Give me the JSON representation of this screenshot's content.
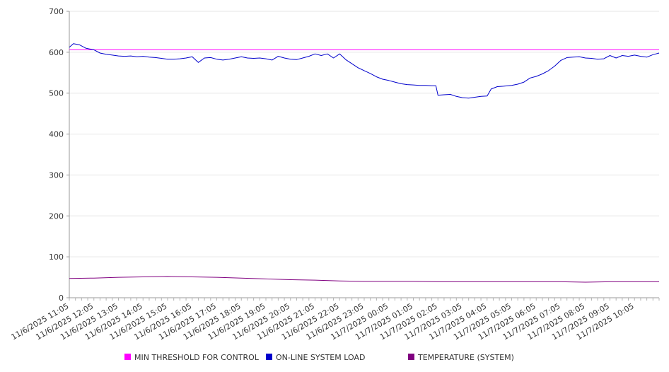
{
  "chart_data": {
    "type": "line",
    "title": "",
    "xlabel": "",
    "ylabel": "",
    "ylim": [
      0,
      700
    ],
    "yticks": [
      0,
      100,
      200,
      300,
      400,
      500,
      600,
      700
    ],
    "grid": true,
    "legend_position": "bottom",
    "x_tick_labels": [
      "11/6/2025 11:05",
      "11/6/2025 12:05",
      "11/6/2025 13:05",
      "11/6/2025 14:05",
      "11/6/2025 15:05",
      "11/6/2025 16:05",
      "11/6/2025 17:05",
      "11/6/2025 18:05",
      "11/6/2025 19:05",
      "11/6/2025 20:05",
      "11/6/2025 21:05",
      "11/6/2025 22:05",
      "11/6/2025 23:05",
      "11/7/2025 00:05",
      "11/7/2025 01:05",
      "11/7/2025 02:05",
      "11/7/2025 03:05",
      "11/7/2025 04:05",
      "11/7/2025 05:05",
      "11/7/2025 06:05",
      "11/7/2025 07:05",
      "11/7/2025 08:05",
      "11/7/2025 09:05",
      "11/7/2025 10:05"
    ],
    "x_domain": [
      "11/6/2025 11:05",
      "11/7/2025 11:05"
    ],
    "series": [
      {
        "name": "MIN THRESHOLD FOR CONTROL",
        "color": "#ff00ff",
        "points": [
          [
            "11/6/2025 11:05",
            606
          ],
          [
            "11/7/2025 11:05",
            606
          ]
        ]
      },
      {
        "name": "ON-LINE SYSTEM LOAD",
        "color": "#0000cc",
        "points": [
          [
            "11/6/2025 11:05",
            612
          ],
          [
            "11/6/2025 11:15",
            621
          ],
          [
            "11/6/2025 11:30",
            618
          ],
          [
            "11/6/2025 11:45",
            610
          ],
          [
            "11/6/2025 12:05",
            606
          ],
          [
            "11/6/2025 12:20",
            598
          ],
          [
            "11/6/2025 12:35",
            595
          ],
          [
            "11/6/2025 12:50",
            593
          ],
          [
            "11/6/2025 13:05",
            591
          ],
          [
            "11/6/2025 13:20",
            590
          ],
          [
            "11/6/2025 13:35",
            591
          ],
          [
            "11/6/2025 13:50",
            589
          ],
          [
            "11/6/2025 14:05",
            590
          ],
          [
            "11/6/2025 14:20",
            588
          ],
          [
            "11/6/2025 14:35",
            587
          ],
          [
            "11/6/2025 14:50",
            585
          ],
          [
            "11/6/2025 15:05",
            583
          ],
          [
            "11/6/2025 15:20",
            583
          ],
          [
            "11/6/2025 15:35",
            584
          ],
          [
            "11/6/2025 15:50",
            586
          ],
          [
            "11/6/2025 16:05",
            589
          ],
          [
            "11/6/2025 16:20",
            575
          ],
          [
            "11/6/2025 16:35",
            586
          ],
          [
            "11/6/2025 16:50",
            587
          ],
          [
            "11/6/2025 17:05",
            583
          ],
          [
            "11/6/2025 17:20",
            581
          ],
          [
            "11/6/2025 17:35",
            583
          ],
          [
            "11/6/2025 17:50",
            586
          ],
          [
            "11/6/2025 18:05",
            589
          ],
          [
            "11/6/2025 18:20",
            586
          ],
          [
            "11/6/2025 18:35",
            585
          ],
          [
            "11/6/2025 18:50",
            586
          ],
          [
            "11/6/2025 19:05",
            584
          ],
          [
            "11/6/2025 19:20",
            581
          ],
          [
            "11/6/2025 19:35",
            590
          ],
          [
            "11/6/2025 19:50",
            586
          ],
          [
            "11/6/2025 20:05",
            583
          ],
          [
            "11/6/2025 20:20",
            582
          ],
          [
            "11/6/2025 20:35",
            586
          ],
          [
            "11/6/2025 20:50",
            590
          ],
          [
            "11/6/2025 21:05",
            596
          ],
          [
            "11/6/2025 21:20",
            592
          ],
          [
            "11/6/2025 21:35",
            596
          ],
          [
            "11/6/2025 21:50",
            586
          ],
          [
            "11/6/2025 22:05",
            596
          ],
          [
            "11/6/2025 22:20",
            582
          ],
          [
            "11/6/2025 22:35",
            572
          ],
          [
            "11/6/2025 22:50",
            562
          ],
          [
            "11/6/2025 23:05",
            555
          ],
          [
            "11/6/2025 23:20",
            548
          ],
          [
            "11/6/2025 23:35",
            540
          ],
          [
            "11/6/2025 23:50",
            534
          ],
          [
            "11/7/2025 00:05",
            531
          ],
          [
            "11/7/2025 00:20",
            527
          ],
          [
            "11/7/2025 00:35",
            523
          ],
          [
            "11/7/2025 00:50",
            521
          ],
          [
            "11/7/2025 01:05",
            520
          ],
          [
            "11/7/2025 01:20",
            519
          ],
          [
            "11/7/2025 01:35",
            519
          ],
          [
            "11/7/2025 01:50",
            518
          ],
          [
            "11/7/2025 02:00",
            518
          ],
          [
            "11/7/2025 02:05",
            495
          ],
          [
            "11/7/2025 02:20",
            496
          ],
          [
            "11/7/2025 02:35",
            497
          ],
          [
            "11/7/2025 02:50",
            492
          ],
          [
            "11/7/2025 03:05",
            489
          ],
          [
            "11/7/2025 03:20",
            488
          ],
          [
            "11/7/2025 03:35",
            490
          ],
          [
            "11/7/2025 03:50",
            492
          ],
          [
            "11/7/2025 04:05",
            493
          ],
          [
            "11/7/2025 04:15",
            510
          ],
          [
            "11/7/2025 04:30",
            516
          ],
          [
            "11/7/2025 04:45",
            517
          ],
          [
            "11/7/2025 05:05",
            519
          ],
          [
            "11/7/2025 05:20",
            522
          ],
          [
            "11/7/2025 05:35",
            527
          ],
          [
            "11/7/2025 05:50",
            537
          ],
          [
            "11/7/2025 06:05",
            541
          ],
          [
            "11/7/2025 06:20",
            547
          ],
          [
            "11/7/2025 06:35",
            555
          ],
          [
            "11/7/2025 06:50",
            566
          ],
          [
            "11/7/2025 07:05",
            580
          ],
          [
            "11/7/2025 07:20",
            587
          ],
          [
            "11/7/2025 07:35",
            588
          ],
          [
            "11/7/2025 07:50",
            589
          ],
          [
            "11/7/2025 08:05",
            586
          ],
          [
            "11/7/2025 08:20",
            585
          ],
          [
            "11/7/2025 08:35",
            583
          ],
          [
            "11/7/2025 08:50",
            584
          ],
          [
            "11/7/2025 09:05",
            592
          ],
          [
            "11/7/2025 09:20",
            586
          ],
          [
            "11/7/2025 09:35",
            592
          ],
          [
            "11/7/2025 09:50",
            590
          ],
          [
            "11/7/2025 10:05",
            593
          ],
          [
            "11/7/2025 10:20",
            590
          ],
          [
            "11/7/2025 10:35",
            588
          ],
          [
            "11/7/2025 10:50",
            594
          ],
          [
            "11/7/2025 11:05",
            598
          ]
        ]
      },
      {
        "name": "TEMPERATURE (SYSTEM)",
        "color": "#800080",
        "points": [
          [
            "11/6/2025 11:05",
            47
          ],
          [
            "11/6/2025 12:05",
            48
          ],
          [
            "11/6/2025 13:05",
            50
          ],
          [
            "11/6/2025 14:05",
            51
          ],
          [
            "11/6/2025 15:05",
            52
          ],
          [
            "11/6/2025 16:05",
            51
          ],
          [
            "11/6/2025 17:05",
            50
          ],
          [
            "11/6/2025 18:05",
            48
          ],
          [
            "11/6/2025 19:05",
            46
          ],
          [
            "11/6/2025 20:05",
            44
          ],
          [
            "11/6/2025 21:05",
            43
          ],
          [
            "11/6/2025 22:05",
            41
          ],
          [
            "11/6/2025 23:05",
            40
          ],
          [
            "11/7/2025 00:05",
            40
          ],
          [
            "11/7/2025 01:05",
            40
          ],
          [
            "11/7/2025 02:05",
            39
          ],
          [
            "11/7/2025 03:05",
            39
          ],
          [
            "11/7/2025 04:05",
            39
          ],
          [
            "11/7/2025 05:05",
            39
          ],
          [
            "11/7/2025 06:05",
            39
          ],
          [
            "11/7/2025 07:05",
            39
          ],
          [
            "11/7/2025 08:05",
            38
          ],
          [
            "11/7/2025 09:05",
            39
          ],
          [
            "11/7/2025 10:05",
            39
          ],
          [
            "11/7/2025 11:05",
            39
          ]
        ]
      }
    ]
  }
}
